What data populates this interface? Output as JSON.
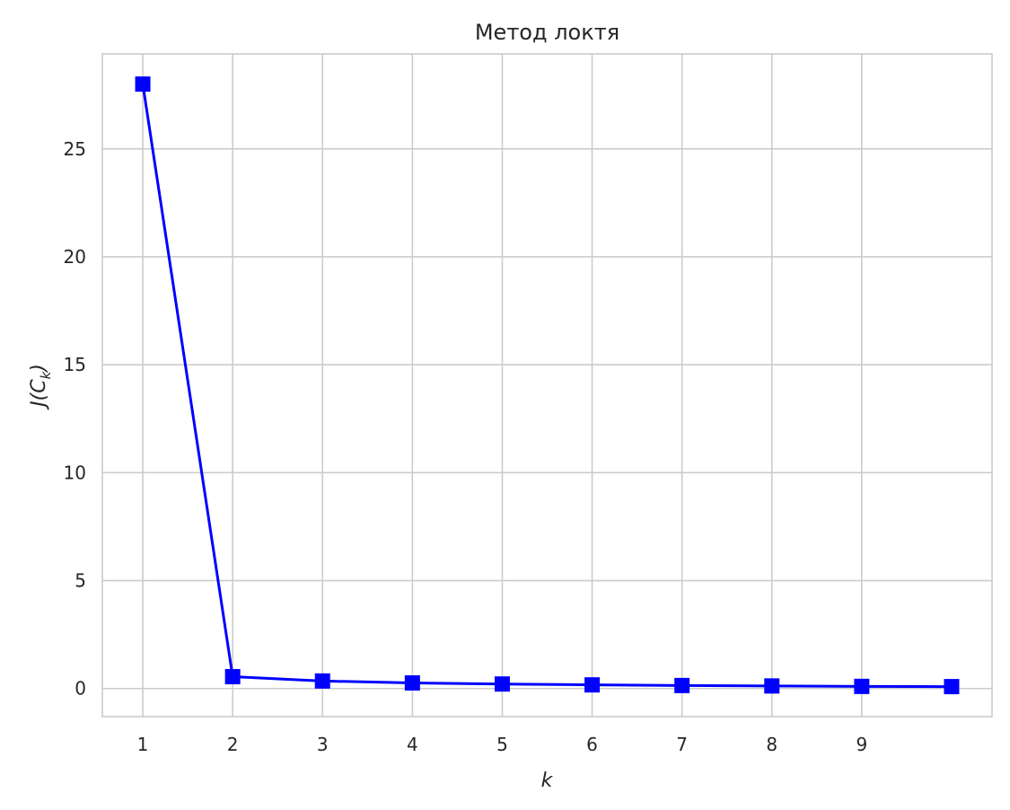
{
  "chart_data": {
    "type": "line",
    "title": "Метод локтя",
    "xlabel": "k",
    "ylabel": {
      "prefix": "J(C",
      "subscript": "k",
      "suffix": ")"
    },
    "x": [
      1,
      2,
      3,
      4,
      5,
      6,
      7,
      8,
      9,
      10
    ],
    "series": [
      {
        "values": [
          28.0,
          0.55,
          0.35,
          0.26,
          0.21,
          0.17,
          0.14,
          0.12,
          0.1,
          0.09
        ],
        "color": "#0000ff",
        "marker": "square"
      }
    ],
    "xticks": [
      1,
      2,
      3,
      4,
      5,
      6,
      7,
      8,
      9
    ],
    "yticks": [
      0,
      5,
      10,
      15,
      20,
      25
    ],
    "xlim": [
      0.55,
      10.45
    ],
    "ylim": [
      -1.3,
      29.4
    ],
    "grid": true,
    "colors": {
      "grid": "#cccccc",
      "text": "#262626",
      "line": "#0000ff"
    }
  }
}
